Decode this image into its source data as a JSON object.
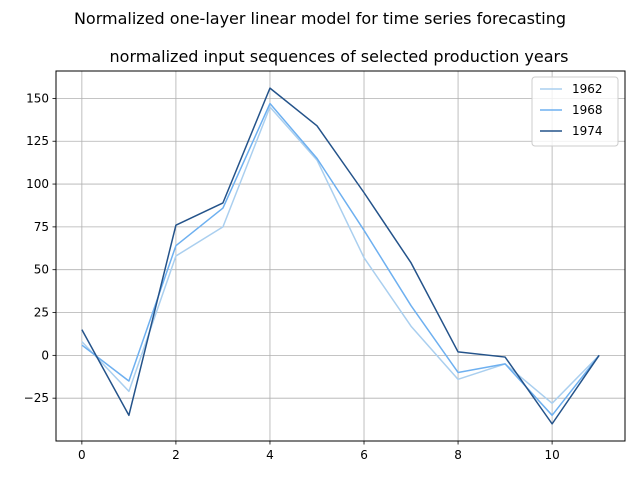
{
  "suptitle": "Normalized one-layer linear model for time series forecasting",
  "chart_data": {
    "type": "line",
    "title": "normalized input sequences of selected production years",
    "xlabel": "",
    "ylabel": "",
    "x": [
      0,
      1,
      2,
      3,
      4,
      5,
      6,
      7,
      8,
      9,
      10,
      11
    ],
    "xlim": [
      -0.55,
      11.55
    ],
    "ylim": [
      -50,
      166
    ],
    "xticks": [
      0,
      2,
      4,
      6,
      8,
      10
    ],
    "yticks": [
      -25,
      0,
      25,
      50,
      75,
      100,
      125,
      150
    ],
    "grid": true,
    "legend_position": "top-right",
    "series": [
      {
        "name": "1962",
        "color": "#aacfef",
        "values": [
          8,
          -21,
          58,
          75,
          145,
          114,
          57,
          17,
          -14,
          -5,
          -28,
          0
        ]
      },
      {
        "name": "1968",
        "color": "#6eb0f0",
        "values": [
          6,
          -15,
          64,
          86,
          147,
          115,
          73,
          29,
          -10,
          -5,
          -35,
          0
        ]
      },
      {
        "name": "1974",
        "color": "#24538a",
        "values": [
          15,
          -35,
          76,
          89,
          156,
          134,
          95,
          54,
          2,
          -1,
          -40,
          0
        ]
      }
    ]
  }
}
